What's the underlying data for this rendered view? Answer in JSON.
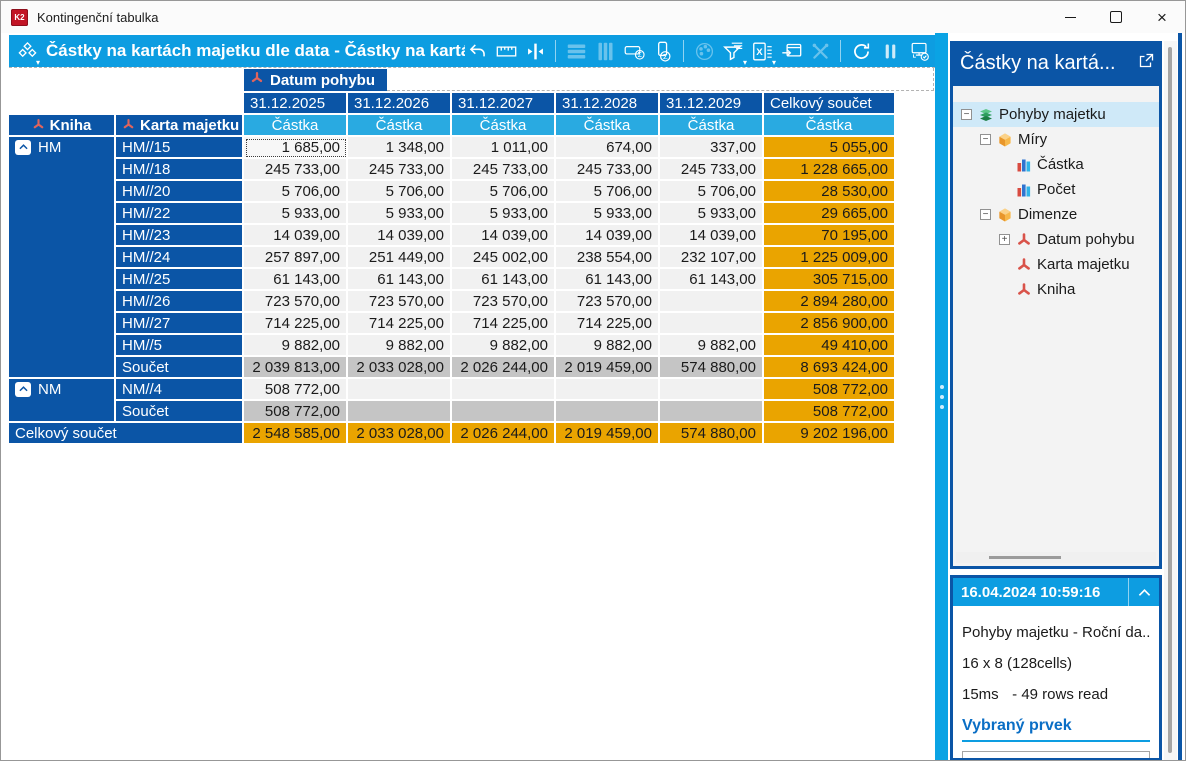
{
  "window": {
    "title": "Kontingenční tabulka",
    "logo_text": "K2",
    "controls": [
      "minimize",
      "maximize",
      "close"
    ]
  },
  "toolbar": {
    "title": "Částky na kartách majetku dle data - Částky na kartách m...",
    "buttons": [
      {
        "name": "pivot-layout",
        "icon": "pivot",
        "enabled": true,
        "caret": true
      },
      {
        "name": "undo",
        "icon": "undo",
        "enabled": true
      },
      {
        "name": "ruler",
        "icon": "ruler",
        "enabled": true
      },
      {
        "name": "column-width",
        "icon": "colwidth",
        "enabled": true
      },
      {
        "name": "separator"
      },
      {
        "name": "row-bands",
        "icon": "rows",
        "enabled": false
      },
      {
        "name": "column-bands",
        "icon": "cols",
        "enabled": false
      },
      {
        "name": "row-totals",
        "icon": "rowsum",
        "enabled": true
      },
      {
        "name": "column-totals",
        "icon": "colsum",
        "enabled": true
      },
      {
        "name": "separator"
      },
      {
        "name": "color-palette",
        "icon": "palette",
        "enabled": false
      },
      {
        "name": "filter",
        "icon": "filter",
        "enabled": true,
        "caret": true
      },
      {
        "name": "excel-export",
        "icon": "excel",
        "enabled": true,
        "caret": true
      },
      {
        "name": "send-to-window",
        "icon": "sendwin",
        "enabled": true
      },
      {
        "name": "tools",
        "icon": "tools",
        "enabled": false
      },
      {
        "name": "separator"
      },
      {
        "name": "refresh",
        "icon": "refresh",
        "enabled": true
      },
      {
        "name": "pause",
        "icon": "pause",
        "enabled": true
      },
      {
        "name": "monitor-status",
        "icon": "monitor",
        "enabled": true
      }
    ]
  },
  "pivot": {
    "column_dimension": "Datum pohybu",
    "row_dimensions": [
      "Kniha",
      "Karta majetku"
    ],
    "measure": "Částka",
    "date_columns": [
      "31.12.2025",
      "31.12.2026",
      "31.12.2027",
      "31.12.2028",
      "31.12.2029"
    ],
    "total_column": "Celkový součet",
    "rows": [
      {
        "group": "HM",
        "group_span": 11,
        "card": "HM//15",
        "type": "data",
        "selected_cell": 0,
        "cells": [
          "1 685,00",
          "1 348,00",
          "1 011,00",
          "674,00",
          "337,00"
        ],
        "total": "5 055,00"
      },
      {
        "card": "HM//18",
        "type": "data",
        "cells": [
          "245 733,00",
          "245 733,00",
          "245 733,00",
          "245 733,00",
          "245 733,00"
        ],
        "total": "1 228 665,00"
      },
      {
        "card": "HM//20",
        "type": "data",
        "cells": [
          "5 706,00",
          "5 706,00",
          "5 706,00",
          "5 706,00",
          "5 706,00"
        ],
        "total": "28 530,00"
      },
      {
        "card": "HM//22",
        "type": "data",
        "cells": [
          "5 933,00",
          "5 933,00",
          "5 933,00",
          "5 933,00",
          "5 933,00"
        ],
        "total": "29 665,00"
      },
      {
        "card": "HM//23",
        "type": "data",
        "cells": [
          "14 039,00",
          "14 039,00",
          "14 039,00",
          "14 039,00",
          "14 039,00"
        ],
        "total": "70 195,00"
      },
      {
        "card": "HM//24",
        "type": "data",
        "cells": [
          "257 897,00",
          "251 449,00",
          "245 002,00",
          "238 554,00",
          "232 107,00"
        ],
        "total": "1 225 009,00"
      },
      {
        "card": "HM//25",
        "type": "data",
        "cells": [
          "61 143,00",
          "61 143,00",
          "61 143,00",
          "61 143,00",
          "61 143,00"
        ],
        "total": "305 715,00"
      },
      {
        "card": "HM//26",
        "type": "data",
        "cells": [
          "723 570,00",
          "723 570,00",
          "723 570,00",
          "723 570,00",
          ""
        ],
        "total": "2 894 280,00"
      },
      {
        "card": "HM//27",
        "type": "data",
        "cells": [
          "714 225,00",
          "714 225,00",
          "714 225,00",
          "714 225,00",
          ""
        ],
        "total": "2 856 900,00"
      },
      {
        "card": "HM//5",
        "type": "data",
        "cells": [
          "9 882,00",
          "9 882,00",
          "9 882,00",
          "9 882,00",
          "9 882,00"
        ],
        "total": "49 410,00"
      },
      {
        "card": "Součet",
        "type": "subtotal",
        "cells": [
          "2 039 813,00",
          "2 033 028,00",
          "2 026 244,00",
          "2 019 459,00",
          "574 880,00"
        ],
        "total": "8 693 424,00"
      },
      {
        "group": "NM",
        "group_span": 2,
        "card": "NM//4",
        "type": "data",
        "cells": [
          "508 772,00",
          "",
          "",
          "",
          ""
        ],
        "total": "508 772,00"
      },
      {
        "card": "Součet",
        "type": "subtotal",
        "cells": [
          "508 772,00",
          "",
          "",
          "",
          ""
        ],
        "total": "508 772,00"
      }
    ],
    "grand_total": {
      "label": "Celkový součet",
      "cells": [
        "2 548 585,00",
        "2 033 028,00",
        "2 026 244,00",
        "2 019 459,00",
        "574 880,00"
      ],
      "total": "9 202 196,00"
    }
  },
  "sidebar": {
    "title": "Částky na kartá...",
    "tree": [
      {
        "id": "pohyby-majetku",
        "label": "Pohyby majetku",
        "level": 0,
        "icon": "layers",
        "toggle": "minus",
        "selected": true
      },
      {
        "id": "miry",
        "label": "Míry",
        "level": 1,
        "icon": "cube",
        "toggle": "minus"
      },
      {
        "id": "castka",
        "label": "Částka",
        "level": 2,
        "icon": "chart"
      },
      {
        "id": "pocet",
        "label": "Počet",
        "level": 2,
        "icon": "chart"
      },
      {
        "id": "dimenze",
        "label": "Dimenze",
        "level": 1,
        "icon": "cube",
        "toggle": "minus"
      },
      {
        "id": "datum-pohybu",
        "label": "Datum pohybu",
        "level": 2,
        "icon": "dimension",
        "toggle": "plus"
      },
      {
        "id": "karta-majetku",
        "label": "Karta majetku",
        "level": 2,
        "icon": "dimension"
      },
      {
        "id": "kniha",
        "label": "Kniha",
        "level": 2,
        "icon": "dimension"
      }
    ]
  },
  "info_panel": {
    "timestamp": "16.04.2024 10:59:16",
    "source": "Pohyby majetku - Roční da...",
    "grid_size": "16 x 8 (128cells)",
    "duration": "15ms",
    "rows_read": "- 49 rows read",
    "selected_heading": "Vybraný prvek"
  }
}
